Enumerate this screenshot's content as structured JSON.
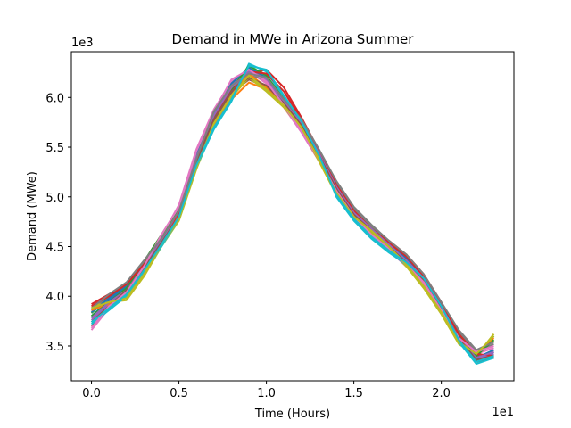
{
  "chart_data": {
    "type": "line",
    "title": "Demand in MWe in Arizona Summer",
    "xlabel": "Time (Hours)",
    "ylabel": "Demand (MWe)",
    "x_offset_label": "1e1",
    "y_offset_label": "1e3",
    "xlim": [
      -1.15,
      24.15
    ],
    "ylim": [
      3150,
      6460
    ],
    "x_ticks": [
      0,
      5,
      10,
      15,
      20
    ],
    "x_tick_labels": [
      "0.0",
      "0.5",
      "1.0",
      "1.5",
      "2.0"
    ],
    "y_ticks": [
      3500,
      4000,
      4500,
      5000,
      5500,
      6000
    ],
    "y_tick_labels": [
      "3.5",
      "4.0",
      "4.5",
      "5.0",
      "5.5",
      "6.0"
    ],
    "grid": false,
    "x": [
      0,
      1,
      2,
      3,
      4,
      5,
      6,
      7,
      8,
      9,
      10,
      11,
      12,
      13,
      14,
      15,
      16,
      17,
      18,
      19,
      20,
      21,
      22,
      23
    ],
    "series": [
      {
        "color": "#1f77b4",
        "values": [
          3800,
          3960,
          4080,
          4300,
          4540,
          4840,
          5380,
          5800,
          6060,
          6180,
          6120,
          5960,
          5740,
          5440,
          5120,
          4860,
          4680,
          4500,
          4340,
          4150,
          3880,
          3580,
          3360,
          3440
        ]
      },
      {
        "color": "#ff7f0e",
        "values": [
          3880,
          3930,
          4000,
          4240,
          4560,
          4820,
          5300,
          5700,
          5980,
          6150,
          6080,
          5900,
          5680,
          5380,
          5070,
          4800,
          4640,
          4480,
          4300,
          4120,
          3860,
          3540,
          3420,
          3560
        ]
      },
      {
        "color": "#2ca02c",
        "values": [
          3830,
          3990,
          4100,
          4350,
          4620,
          4890,
          5420,
          5840,
          6100,
          6260,
          6160,
          5940,
          5720,
          5420,
          5090,
          4830,
          4660,
          4520,
          4400,
          4180,
          3900,
          3600,
          3380,
          3600
        ]
      },
      {
        "color": "#d62728",
        "values": [
          3920,
          4020,
          4100,
          4280,
          4530,
          4800,
          5350,
          5780,
          6080,
          6230,
          6280,
          6100,
          5800,
          5470,
          5140,
          4870,
          4690,
          4560,
          4420,
          4220,
          3940,
          3620,
          3400,
          3380
        ]
      },
      {
        "color": "#9467bd",
        "values": [
          3760,
          3920,
          4060,
          4320,
          4580,
          4860,
          5400,
          5820,
          6120,
          6280,
          6200,
          5980,
          5760,
          5450,
          5110,
          4850,
          4700,
          4540,
          4380,
          4200,
          3920,
          3600,
          3380,
          3420
        ]
      },
      {
        "color": "#8c564b",
        "values": [
          3700,
          3880,
          4040,
          4260,
          4520,
          4780,
          5340,
          5760,
          6040,
          6180,
          6100,
          5920,
          5700,
          5400,
          5080,
          4820,
          4650,
          4480,
          4320,
          4140,
          3870,
          3560,
          3340,
          3380
        ]
      },
      {
        "color": "#e377c2",
        "values": [
          3660,
          3880,
          4020,
          4280,
          4600,
          4920,
          5480,
          5880,
          6160,
          6260,
          6140,
          5900,
          5650,
          5360,
          5040,
          4780,
          4600,
          4460,
          4300,
          4120,
          3850,
          3560,
          3420,
          3480
        ]
      },
      {
        "color": "#7f7f7f",
        "values": [
          3860,
          4000,
          4120,
          4340,
          4560,
          4840,
          5360,
          5860,
          6100,
          6220,
          6180,
          5960,
          5760,
          5460,
          5140,
          4880,
          4700,
          4540,
          4400,
          4200,
          3920,
          3640,
          3440,
          3520
        ]
      },
      {
        "color": "#bcbd22",
        "values": [
          3900,
          3940,
          3960,
          4200,
          4500,
          4760,
          5280,
          5720,
          6000,
          6200,
          6060,
          5900,
          5680,
          5360,
          5020,
          4780,
          4640,
          4480,
          4300,
          4080,
          3820,
          3520,
          3400,
          3620
        ]
      },
      {
        "color": "#17becf",
        "values": [
          3720,
          3860,
          4000,
          4240,
          4500,
          4780,
          5300,
          5680,
          5960,
          6340,
          6260,
          6000,
          5780,
          5440,
          5000,
          4760,
          4580,
          4440,
          4320,
          4160,
          3880,
          3540,
          3320,
          3380
        ]
      },
      {
        "color": "#1f77b4",
        "values": [
          3840,
          3980,
          4100,
          4300,
          4560,
          4860,
          5420,
          5820,
          6140,
          6300,
          6200,
          5980,
          5760,
          5440,
          5100,
          4840,
          4680,
          4520,
          4380,
          4180,
          3900,
          3600,
          3380,
          3460
        ]
      },
      {
        "color": "#ff7f0e",
        "values": [
          3860,
          3920,
          4020,
          4260,
          4540,
          4820,
          5320,
          5720,
          6020,
          6240,
          6100,
          5920,
          5700,
          5400,
          5060,
          4800,
          4660,
          4500,
          4340,
          4140,
          3880,
          3560,
          3420,
          3580
        ]
      },
      {
        "color": "#2ca02c",
        "values": [
          3800,
          3940,
          4080,
          4320,
          4580,
          4880,
          5400,
          5800,
          6080,
          6320,
          6220,
          5980,
          5740,
          5420,
          5100,
          4840,
          4680,
          4540,
          4420,
          4200,
          3920,
          3620,
          3400,
          3560
        ]
      },
      {
        "color": "#d62728",
        "values": [
          3900,
          4000,
          4120,
          4320,
          4560,
          4840,
          5380,
          5780,
          6100,
          6260,
          6240,
          6060,
          5780,
          5460,
          5120,
          4860,
          4680,
          4540,
          4400,
          4200,
          3930,
          3620,
          3420,
          3400
        ]
      },
      {
        "color": "#9467bd",
        "values": [
          3780,
          3940,
          4060,
          4300,
          4560,
          4860,
          5400,
          5820,
          6100,
          6260,
          6180,
          5960,
          5740,
          5440,
          5100,
          4840,
          4680,
          4520,
          4360,
          4180,
          3900,
          3580,
          3380,
          3440
        ]
      },
      {
        "color": "#8c564b",
        "values": [
          3740,
          3900,
          4060,
          4280,
          4540,
          4800,
          5360,
          5780,
          6060,
          6200,
          6120,
          5940,
          5720,
          5420,
          5080,
          4820,
          4660,
          4500,
          4340,
          4160,
          3880,
          3580,
          3360,
          3400
        ]
      },
      {
        "color": "#e377c2",
        "values": [
          3680,
          3900,
          4040,
          4300,
          4620,
          4900,
          5460,
          5860,
          6180,
          6280,
          6160,
          5920,
          5660,
          5380,
          5060,
          4800,
          4620,
          4480,
          4320,
          4140,
          3860,
          3580,
          3440,
          3500
        ]
      },
      {
        "color": "#7f7f7f",
        "values": [
          3880,
          4020,
          4140,
          4360,
          4580,
          4860,
          5380,
          5860,
          6120,
          6240,
          6200,
          5980,
          5780,
          5480,
          5160,
          4900,
          4720,
          4560,
          4420,
          4220,
          3940,
          3660,
          3460,
          3540
        ]
      },
      {
        "color": "#bcbd22",
        "values": [
          3880,
          3940,
          3980,
          4220,
          4520,
          4780,
          5300,
          5740,
          6020,
          6220,
          6080,
          5920,
          5700,
          5380,
          5040,
          4800,
          4660,
          4500,
          4320,
          4100,
          3840,
          3540,
          3420,
          3600
        ]
      },
      {
        "color": "#17becf",
        "values": [
          3740,
          3880,
          4020,
          4260,
          4520,
          4800,
          5320,
          5700,
          5980,
          6320,
          6280,
          6020,
          5760,
          5420,
          5020,
          4780,
          4600,
          4460,
          4340,
          4180,
          3900,
          3560,
          3340,
          3400
        ]
      }
    ]
  }
}
